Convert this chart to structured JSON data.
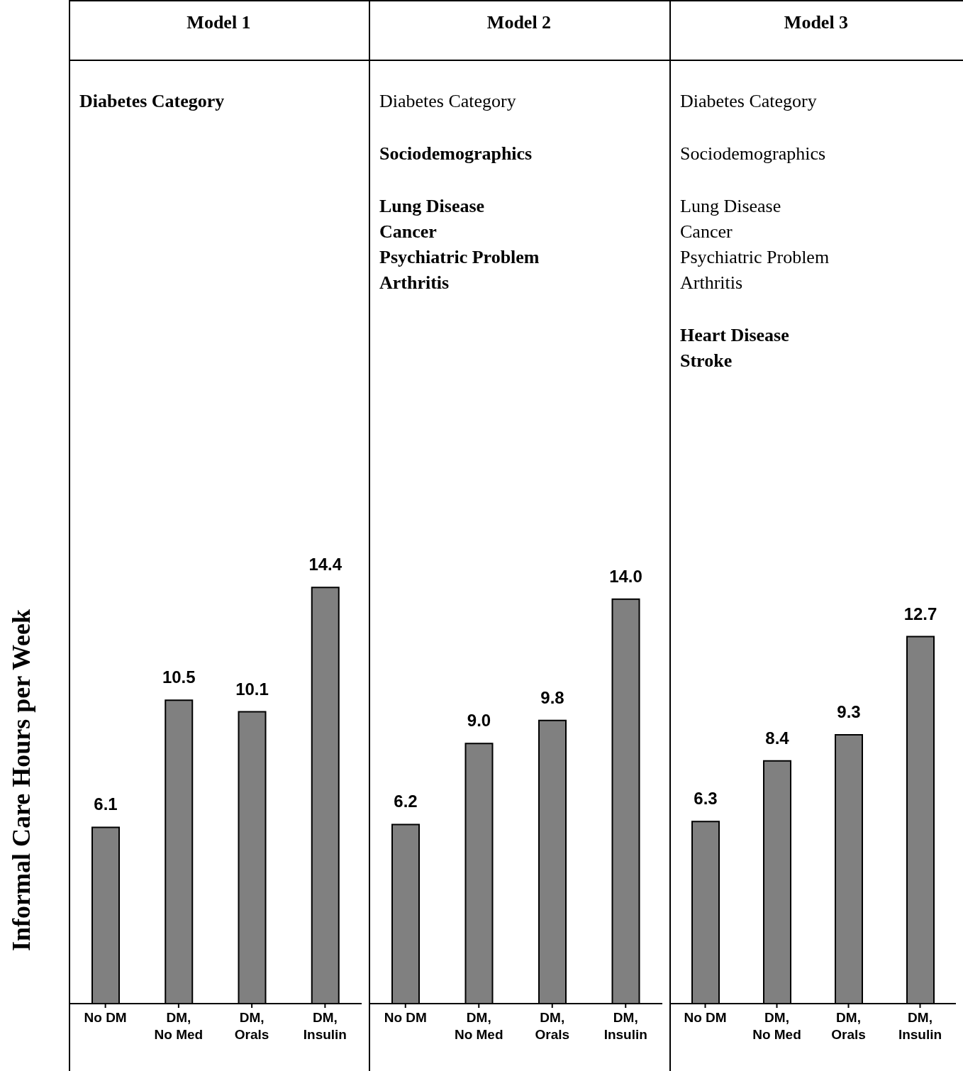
{
  "chart_data": [
    {
      "type": "bar",
      "title": "Model 1",
      "subtitle": "Diabetes Category",
      "ylabel": "Informal Care Hours per Week",
      "categories": [
        "No DM",
        "DM, No Med",
        "DM, Orals",
        "DM, Insulin"
      ],
      "values": [
        6.1,
        10.5,
        10.1,
        14.4
      ],
      "value_labels": [
        "6.1",
        "10.5",
        "10.1",
        "14.4"
      ],
      "color": "#808080"
    },
    {
      "type": "bar",
      "title": "Model 2",
      "annotations": [
        "Diabetes Category"
      ],
      "subtitle": "Sociodemographics\n\nLung Disease\nCancer\nPsychiatric Problem\nArthritis",
      "categories": [
        "No DM",
        "DM, No Med",
        "DM, Orals",
        "DM, Insulin"
      ],
      "values": [
        6.2,
        9.0,
        9.8,
        14.0
      ],
      "value_labels": [
        "6.2",
        "9.0",
        "9.8",
        "14.0"
      ],
      "color": "#808080"
    },
    {
      "type": "bar",
      "title": "Model 3",
      "annotations": [
        "Diabetes Category",
        "Sociodemographics",
        "Lung Disease\nCancer\nPsychiatric Problem\nArthritis"
      ],
      "subtitle": "Heart Disease\nStroke",
      "categories": [
        "No DM",
        "DM, No Med",
        "DM, Orals",
        "DM, Insulin"
      ],
      "values": [
        6.3,
        8.4,
        9.3,
        12.7
      ],
      "value_labels": [
        "6.3",
        "8.4",
        "9.3",
        "12.7"
      ],
      "color": "#808080"
    }
  ]
}
